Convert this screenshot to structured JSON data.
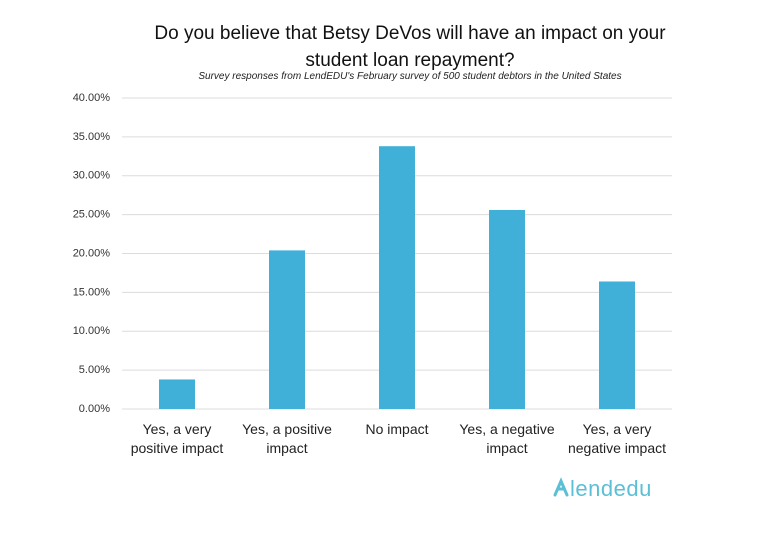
{
  "chart_data": {
    "type": "bar",
    "title": "Do you believe that Betsy DeVos will have an impact on your student loan repayment?",
    "subtitle": "Survey responses from LendEDU's February survey of 500 student debtors in the United States",
    "categories": [
      "Yes, a very positive impact",
      "Yes, a positive impact",
      "No impact",
      "Yes, a negative impact",
      "Yes, a very negative impact"
    ],
    "values": [
      3.8,
      20.4,
      33.8,
      25.6,
      16.4
    ],
    "color": "#40b0d8",
    "ylim": [
      0,
      40
    ],
    "yticks": [
      {
        "value": 0,
        "label": "0.00%"
      },
      {
        "value": 5,
        "label": "5.00%"
      },
      {
        "value": 10,
        "label": "10.00%"
      },
      {
        "value": 15,
        "label": "15.00%"
      },
      {
        "value": 20,
        "label": "20.00%"
      },
      {
        "value": 25,
        "label": "25.00%"
      },
      {
        "value": 30,
        "label": "30.00%"
      },
      {
        "value": 35,
        "label": "35.00%"
      },
      {
        "value": 40,
        "label": "40.00%"
      }
    ],
    "grid": true
  },
  "logo": "lendedu"
}
